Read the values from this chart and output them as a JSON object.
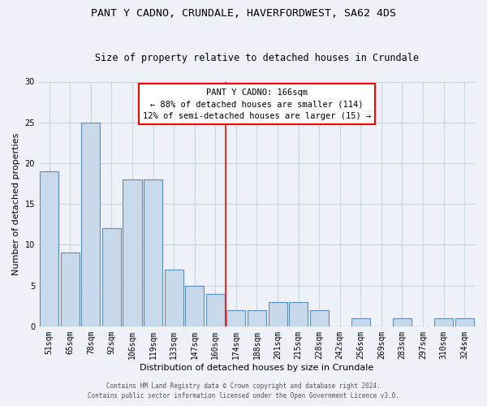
{
  "title1": "PANT Y CADNO, CRUNDALE, HAVERFORDWEST, SA62 4DS",
  "title2": "Size of property relative to detached houses in Crundale",
  "xlabel": "Distribution of detached houses by size in Crundale",
  "ylabel": "Number of detached properties",
  "categories": [
    "51sqm",
    "65sqm",
    "78sqm",
    "92sqm",
    "106sqm",
    "119sqm",
    "133sqm",
    "147sqm",
    "160sqm",
    "174sqm",
    "188sqm",
    "201sqm",
    "215sqm",
    "228sqm",
    "242sqm",
    "256sqm",
    "269sqm",
    "283sqm",
    "297sqm",
    "310sqm",
    "324sqm"
  ],
  "values": [
    19,
    9,
    25,
    12,
    18,
    18,
    7,
    5,
    4,
    2,
    2,
    3,
    3,
    2,
    0,
    1,
    0,
    1,
    0,
    1,
    1
  ],
  "bar_color": "#c9d9ec",
  "bar_edge_color": "#5b8db8",
  "vline_x_index": 8,
  "vline_color": "red",
  "annotation_title": "PANT Y CADNO: 166sqm",
  "annotation_line1": "← 88% of detached houses are smaller (114)",
  "annotation_line2": "12% of semi-detached houses are larger (15) →",
  "annotation_box_color": "white",
  "annotation_box_edge_color": "red",
  "ylim": [
    0,
    30
  ],
  "yticks": [
    0,
    5,
    10,
    15,
    20,
    25,
    30
  ],
  "footer1": "Contains HM Land Registry data © Crown copyright and database right 2024.",
  "footer2": "Contains public sector information licensed under the Open Government Licence v3.0.",
  "bg_color": "#eef2f8",
  "grid_color": "#c8d4e4",
  "title1_fontsize": 9.5,
  "title2_fontsize": 8.5,
  "tick_fontsize": 7,
  "ylabel_fontsize": 8,
  "xlabel_fontsize": 8,
  "annotation_fontsize": 7.5,
  "footer_fontsize": 5.5
}
